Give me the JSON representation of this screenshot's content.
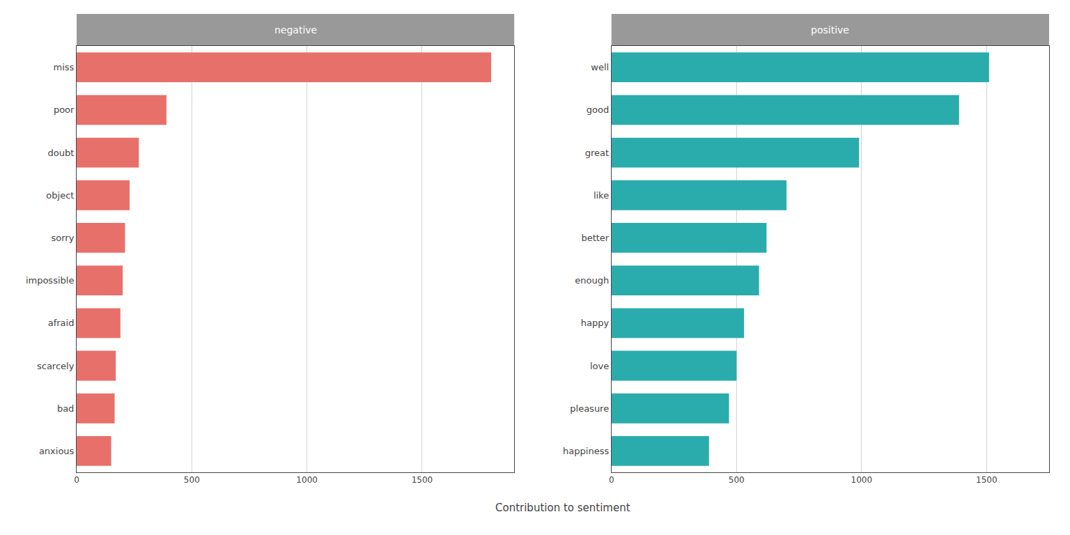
{
  "chart_data": [
    {
      "type": "bar",
      "orientation": "horizontal",
      "title": "negative",
      "categories": [
        "miss",
        "poor",
        "doubt",
        "object",
        "sorry",
        "impossible",
        "afraid",
        "scarcely",
        "bad",
        "anxious"
      ],
      "values": [
        1800,
        390,
        270,
        230,
        210,
        200,
        190,
        170,
        165,
        150
      ],
      "color": "#E8706A",
      "xlim": [
        0,
        1900
      ],
      "xticks": [
        0,
        500,
        1000,
        1500
      ],
      "grid": true
    },
    {
      "type": "bar",
      "orientation": "horizontal",
      "title": "positive",
      "categories": [
        "well",
        "good",
        "great",
        "like",
        "better",
        "enough",
        "happy",
        "love",
        "pleasure",
        "happiness"
      ],
      "values": [
        1510,
        1390,
        990,
        700,
        620,
        590,
        530,
        500,
        470,
        390
      ],
      "color": "#2AACAC",
      "xlim": [
        0,
        1750
      ],
      "xticks": [
        0,
        500,
        1000,
        1500
      ],
      "grid": true
    }
  ],
  "xlabel": "Contribution to sentiment"
}
